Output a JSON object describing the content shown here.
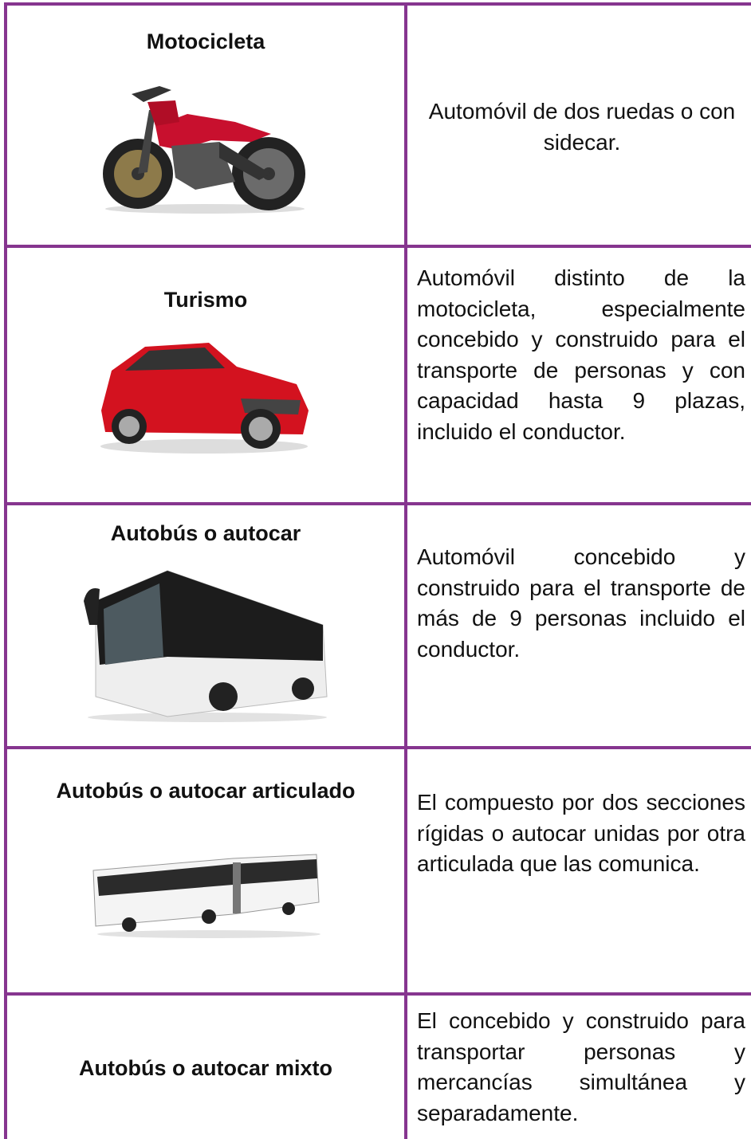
{
  "table": {
    "rows": [
      {
        "title": "Motocicleta",
        "description": "Automóvil de dos ruedas o con sidecar."
      },
      {
        "title": "Turismo",
        "description": "Automóvil distinto de la motocicleta, especialmente concebido y construido para el transporte de personas y con capacidad hasta 9 plazas, incluido el conductor."
      },
      {
        "title": "Autobús o autocar",
        "description": "Automóvil concebido y construido para el transporte de más de 9 personas incluido el conductor."
      },
      {
        "title": "Autobús o autocar articulado",
        "description": "El compuesto por dos secciones rígidas o autocar unidas por otra articulada que las comunica."
      },
      {
        "title": "Autobús o autocar mixto",
        "description": "El concebido y construido para transportar personas y mercancías simultánea y separadamente."
      }
    ]
  }
}
